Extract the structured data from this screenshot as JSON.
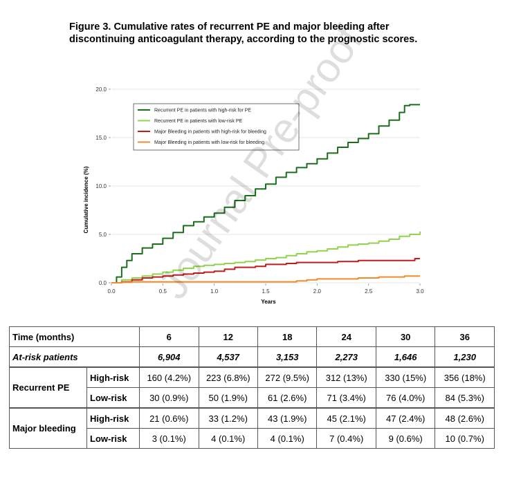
{
  "caption": {
    "line1": "Figure 3. Cumulative rates of recurrent PE and major bleeding after",
    "line2": "discontinuing anticoagulant therapy, according to the prognostic scores."
  },
  "watermark": "Journal Pre-proof",
  "chart_data": {
    "type": "line",
    "xlabel": "Years",
    "ylabel": "Cumulative incidence (%)",
    "xlim": [
      0,
      3
    ],
    "ylim": [
      0,
      20
    ],
    "xticks": [
      "0.0",
      "0.5",
      "1.0",
      "1.5",
      "2.0",
      "2.5",
      "3.0"
    ],
    "yticks": [
      "0.0",
      "5.0",
      "10.0",
      "15.0",
      "20.0"
    ],
    "grid": "horizontal",
    "legend_position": "top-left",
    "series": [
      {
        "name": "Recurrent PE in patients with high-risk for PE",
        "color": "#1a6e1a",
        "x": [
          0,
          0.05,
          0.1,
          0.15,
          0.2,
          0.3,
          0.4,
          0.5,
          0.6,
          0.7,
          0.8,
          0.9,
          1.0,
          1.1,
          1.2,
          1.3,
          1.4,
          1.5,
          1.6,
          1.7,
          1.8,
          1.9,
          2.0,
          2.1,
          2.2,
          2.3,
          2.4,
          2.5,
          2.6,
          2.7,
          2.8,
          2.85,
          2.9,
          3.0
        ],
        "y": [
          0,
          0.6,
          1.6,
          2.3,
          3.0,
          3.6,
          4.0,
          4.6,
          5.2,
          5.9,
          6.3,
          6.8,
          7.2,
          7.8,
          8.5,
          9.0,
          9.7,
          10.2,
          10.9,
          11.4,
          11.9,
          12.3,
          12.8,
          13.4,
          14.0,
          14.5,
          14.9,
          15.4,
          16.2,
          16.8,
          17.6,
          18.3,
          18.4,
          18.4
        ]
      },
      {
        "name": "Recurrent PE in patients with low-risk PE",
        "color": "#8fd44a",
        "x": [
          0,
          0.1,
          0.2,
          0.3,
          0.4,
          0.5,
          0.6,
          0.7,
          0.8,
          0.9,
          1.0,
          1.1,
          1.2,
          1.3,
          1.4,
          1.5,
          1.6,
          1.7,
          1.8,
          1.9,
          2.0,
          2.1,
          2.2,
          2.3,
          2.4,
          2.5,
          2.6,
          2.7,
          2.8,
          2.9,
          3.0
        ],
        "y": [
          0,
          0.3,
          0.5,
          0.7,
          0.9,
          1.1,
          1.3,
          1.5,
          1.7,
          1.8,
          1.9,
          2.0,
          2.1,
          2.2,
          2.35,
          2.5,
          2.6,
          2.8,
          3.0,
          3.2,
          3.3,
          3.5,
          3.7,
          3.9,
          4.0,
          4.1,
          4.3,
          4.5,
          4.8,
          5.0,
          5.3
        ]
      },
      {
        "name": "Major Bleeding in patients with high-risk for bleeding",
        "color": "#c41a1a",
        "x": [
          0,
          0.1,
          0.2,
          0.3,
          0.4,
          0.5,
          0.6,
          0.7,
          0.8,
          0.9,
          1.0,
          1.1,
          1.2,
          1.3,
          1.4,
          1.5,
          1.6,
          1.7,
          1.8,
          1.9,
          2.0,
          2.1,
          2.2,
          2.3,
          2.4,
          2.5,
          2.6,
          2.7,
          2.8,
          2.9,
          2.95,
          3.0
        ],
        "y": [
          0,
          0.1,
          0.3,
          0.5,
          0.6,
          0.7,
          0.8,
          0.9,
          1.0,
          1.1,
          1.2,
          1.4,
          1.6,
          1.6,
          1.7,
          1.9,
          1.9,
          2.0,
          2.1,
          2.1,
          2.1,
          2.1,
          2.2,
          2.2,
          2.3,
          2.3,
          2.3,
          2.3,
          2.3,
          2.3,
          2.5,
          2.5
        ]
      },
      {
        "name": "Major Bleeding in patients with low-risk for bleeding",
        "color": "#f08a2a",
        "x": [
          0,
          0.1,
          0.2,
          0.5,
          1.0,
          1.5,
          1.75,
          1.8,
          1.9,
          2.0,
          2.1,
          2.3,
          2.4,
          2.5,
          2.6,
          2.8,
          2.85,
          3.0
        ],
        "y": [
          0,
          0.05,
          0.1,
          0.1,
          0.1,
          0.1,
          0.1,
          0.2,
          0.3,
          0.4,
          0.4,
          0.4,
          0.5,
          0.5,
          0.6,
          0.6,
          0.7,
          0.7
        ]
      }
    ]
  },
  "table": {
    "time_label": "Time (months)",
    "times": [
      "6",
      "12",
      "18",
      "24",
      "30",
      "36"
    ],
    "atrisk_label": "At-risk patients",
    "atrisk": [
      "6,904",
      "4,537",
      "3,153",
      "2,273",
      "1,646",
      "1,230"
    ],
    "groups": [
      {
        "label": "Recurrent PE",
        "rows": [
          {
            "risk": "High-risk",
            "values": [
              "160 (4.2%)",
              "223 (6.8%)",
              "272 (9.5%)",
              "312 (13%)",
              "330 (15%)",
              "356 (18%)"
            ]
          },
          {
            "risk": "Low-risk",
            "values": [
              "30 (0.9%)",
              "50 (1.9%)",
              "61 (2.6%)",
              "71 (3.4%)",
              "76 (4.0%)",
              "84 (5.3%)"
            ]
          }
        ]
      },
      {
        "label": "Major bleeding",
        "rows": [
          {
            "risk": "High-risk",
            "values": [
              "21 (0.6%)",
              "33 (1.2%)",
              "43 (1.9%)",
              "45 (2.1%)",
              "47 (2.4%)",
              "48 (2.6%)"
            ]
          },
          {
            "risk": "Low-risk",
            "values": [
              "3 (0.1%)",
              "4 (0.1%)",
              "4 (0.1%)",
              "7 (0.4%)",
              "9 (0.6%)",
              "10 (0.7%)"
            ]
          }
        ]
      }
    ]
  }
}
